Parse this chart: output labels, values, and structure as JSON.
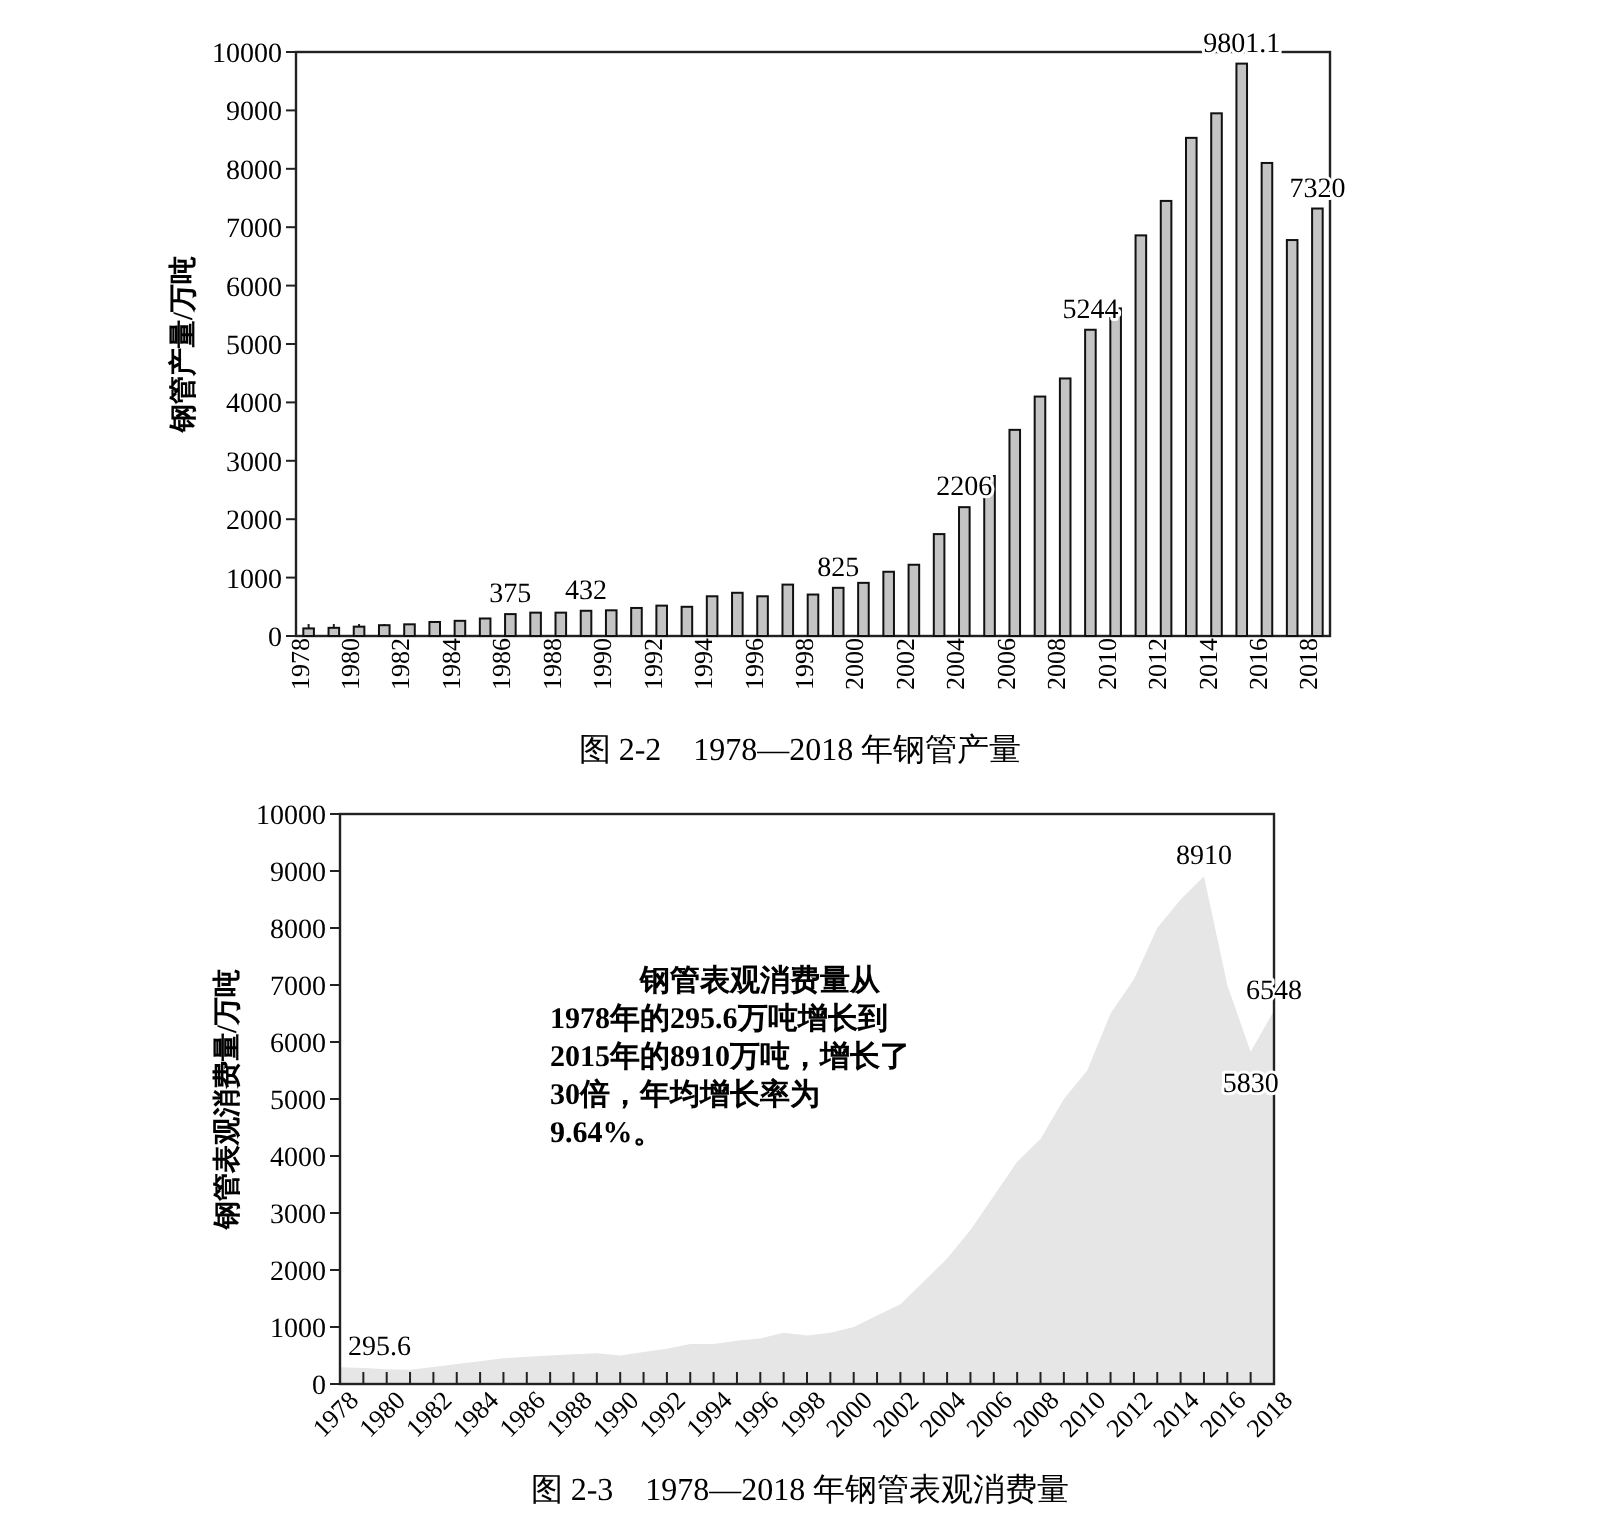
{
  "chart_data": [
    {
      "type": "bar",
      "title": "图 2-2　1978—2018 年钢管产量",
      "ylabel": "钢管产量/万吨",
      "categories": [
        "1978",
        null,
        "1980",
        null,
        "1982",
        null,
        "1984",
        null,
        "1986",
        null,
        "1988",
        null,
        "1990",
        null,
        "1992",
        null,
        "1994",
        null,
        "1996",
        null,
        "1998",
        null,
        "2000",
        null,
        "2002",
        null,
        "2004",
        null,
        "2006",
        null,
        "2008",
        null,
        "2010",
        null,
        "2012",
        null,
        "2014",
        null,
        "2016",
        null,
        "2018"
      ],
      "values": [
        130,
        140,
        160,
        185,
        200,
        240,
        260,
        300,
        375,
        400,
        400,
        432,
        440,
        480,
        520,
        500,
        680,
        740,
        680,
        880,
        710,
        825,
        910,
        1100,
        1220,
        1745,
        2206,
        2740,
        3530,
        4100,
        4410,
        5244,
        5610,
        6860,
        7450,
        8530,
        8950,
        9801.1,
        8100,
        6780,
        7320
      ],
      "value_labels": [
        null,
        null,
        null,
        null,
        null,
        null,
        null,
        null,
        "375",
        null,
        null,
        "432",
        null,
        null,
        null,
        null,
        null,
        null,
        null,
        null,
        null,
        "825",
        null,
        null,
        null,
        null,
        "2206",
        null,
        null,
        null,
        null,
        "5244",
        null,
        null,
        null,
        null,
        null,
        "9801.1",
        null,
        null,
        "7320"
      ],
      "color": "#c4c4c4",
      "ylim": [
        0,
        10000
      ],
      "yticks": [
        0,
        1000,
        2000,
        3000,
        4000,
        5000,
        6000,
        7000,
        8000,
        9000,
        10000
      ]
    },
    {
      "type": "area",
      "title": "图 2-3　1978—2018 年钢管表观消费量",
      "ylabel": "钢管表观消费量/万吨",
      "categories": [
        "1978",
        null,
        "1980",
        null,
        "1982",
        null,
        "1984",
        null,
        "1986",
        null,
        "1988",
        null,
        "1990",
        null,
        "1992",
        null,
        "1994",
        null,
        "1996",
        null,
        "1998",
        null,
        "2000",
        null,
        "2002",
        null,
        "2004",
        null,
        "2006",
        null,
        "2008",
        null,
        "2010",
        null,
        "2012",
        null,
        "2014",
        null,
        "2016",
        null,
        "2018"
      ],
      "values": [
        295.6,
        280,
        260,
        250,
        300,
        350,
        400,
        450,
        480,
        500,
        520,
        540,
        500,
        560,
        620,
        700,
        700,
        760,
        800,
        900,
        850,
        900,
        1000,
        1200,
        1400,
        1800,
        2200,
        2700,
        3300,
        3900,
        4300,
        5000,
        5500,
        6500,
        7100,
        8000,
        8500,
        8910,
        7000,
        5830,
        6548
      ],
      "value_labels": [
        "295.6",
        null,
        null,
        null,
        null,
        null,
        null,
        null,
        null,
        null,
        null,
        null,
        null,
        null,
        null,
        null,
        null,
        null,
        null,
        null,
        null,
        null,
        null,
        null,
        null,
        null,
        null,
        null,
        null,
        null,
        null,
        null,
        null,
        null,
        null,
        null,
        null,
        "8910",
        null,
        "5830",
        "6548"
      ],
      "color": "#e6e6e6",
      "ylim": [
        0,
        10000
      ],
      "yticks": [
        0,
        1000,
        2000,
        3000,
        4000,
        5000,
        6000,
        7000,
        8000,
        9000,
        10000
      ],
      "annotations": [
        "钢管表观消费量从1978年的295.6万吨增长到2015年的8910万吨，增长了30倍，年均增长率为9.64%。"
      ]
    }
  ]
}
